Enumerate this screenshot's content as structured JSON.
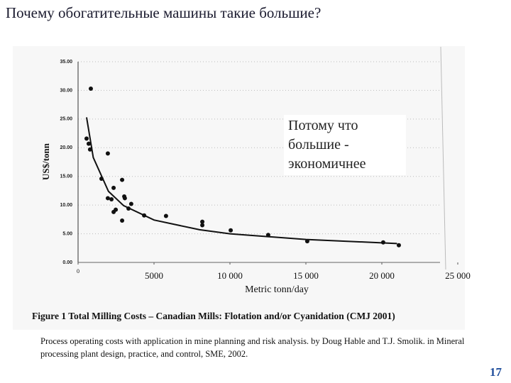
{
  "title": "Почему обогатительные машины такие большие?",
  "chart_data": {
    "type": "scatter",
    "ylabel": "US$/tonn",
    "xlabel": "Metric tonn/day",
    "annotation": "Потому что большие - экономичнее",
    "caption": "Figure 1 Total Milling Costs – Canadian Mills: Flotation and/or Cyanidation (CMJ 2001)",
    "xlim": [
      0,
      25000
    ],
    "ylim": [
      0,
      35
    ],
    "xticks": [
      0,
      5000,
      {
        "value": 10000,
        "label": "10 000"
      },
      {
        "value": 15000,
        "label": "15 000"
      },
      {
        "value": 20000,
        "label": "20 000"
      },
      {
        "value": 25000,
        "label": "25 000"
      }
    ],
    "yticks": [
      {
        "value": 0,
        "label": "0.00"
      },
      {
        "value": 5,
        "label": "5.00"
      },
      {
        "value": 10,
        "label": "10.00"
      },
      {
        "value": 15,
        "label": "15.00"
      },
      {
        "value": 20,
        "label": "20.00"
      },
      {
        "value": 25,
        "label": "25.00"
      },
      {
        "value": 30,
        "label": "30.00"
      },
      {
        "value": 35,
        "label": "35.00"
      }
    ],
    "grid": true,
    "series": [
      {
        "type": "scatter",
        "color": "#111111",
        "x": [
          840,
          560,
          700,
          790,
          1960,
          1540,
          2900,
          2340,
          1960,
          2200,
          3040,
          3080,
          3500,
          3320,
          2480,
          2340,
          4350,
          2900,
          5790,
          8180,
          8180,
          10050,
          12520,
          15090,
          20090,
          21120
        ],
        "values": [
          30.3,
          21.6,
          20.7,
          19.7,
          19.0,
          14.6,
          14.4,
          13.0,
          11.2,
          11.0,
          11.5,
          11.2,
          10.2,
          9.4,
          9.2,
          8.8,
          8.2,
          7.3,
          8.1,
          7.1,
          6.5,
          5.6,
          4.8,
          3.7,
          3.5,
          3.0
        ]
      },
      {
        "type": "line",
        "color": "#111111",
        "x": [
          560,
          1000,
          2000,
          3000,
          5000,
          8000,
          10000,
          15000,
          21000
        ],
        "values": [
          25.3,
          18.3,
          12.4,
          9.9,
          7.4,
          5.7,
          5.0,
          4.0,
          3.3
        ]
      }
    ]
  },
  "source": "Process operating costs with application in mine planning and risk analysis. by Doug Hable and T.J. Smolik. in Mineral processing plant design, practice, and control, SME, 2002.",
  "page_number": "17"
}
